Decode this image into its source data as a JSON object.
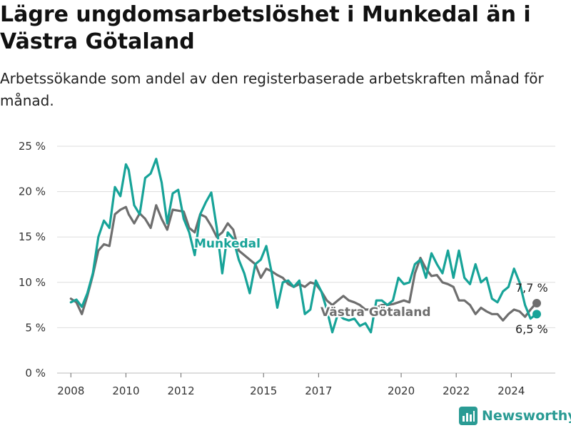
{
  "header": {
    "title": "Lägre ungdomsarbetslöshet i Munkedal än i Västra Götaland",
    "subtitle": "Arbetssökande som andel av den registerbaserade arbetskraften månad för månad."
  },
  "brand": {
    "name": "Newsworthy",
    "icon": "bar-chart-logo-icon"
  },
  "colors": {
    "munkedal": "#17a398",
    "vastra": "#6e6e6e",
    "grid": "#dddddd",
    "brand": "#2a9b94"
  },
  "chart_data": {
    "type": "line",
    "title": "Lägre ungdomsarbetslöshet i Munkedal än i Västra Götaland",
    "xlabel": "",
    "ylabel": "",
    "xlim": [
      2007.5,
      2025.6
    ],
    "ylim": [
      0,
      25
    ],
    "x_ticks": [
      2008,
      2010,
      2012,
      2015,
      2017,
      2020,
      2022,
      2024
    ],
    "x_tick_labels": [
      "2008",
      "2010",
      "2012",
      "2015",
      "2017",
      "2020",
      "2022",
      "2024"
    ],
    "y_ticks": [
      0,
      5,
      10,
      15,
      20,
      25
    ],
    "y_tick_labels": [
      "0 %",
      "5 %",
      "10 %",
      "15 %",
      "20 %",
      "25 %"
    ],
    "grid": "horizontal",
    "legend": "inline labels",
    "series": [
      {
        "name": "Munkedal",
        "color": "#17a398",
        "end_label": "6,5 %",
        "x": [
          2008.0,
          2008.2,
          2008.4,
          2008.6,
          2008.8,
          2009.0,
          2009.2,
          2009.4,
          2009.6,
          2009.8,
          2010.0,
          2010.1,
          2010.3,
          2010.5,
          2010.7,
          2010.9,
          2011.1,
          2011.3,
          2011.5,
          2011.7,
          2011.9,
          2012.1,
          2012.3,
          2012.5,
          2012.7,
          2012.9,
          2013.1,
          2013.3,
          2013.5,
          2013.7,
          2013.9,
          2014.1,
          2014.3,
          2014.5,
          2014.7,
          2014.9,
          2015.1,
          2015.3,
          2015.5,
          2015.7,
          2015.9,
          2016.1,
          2016.3,
          2016.5,
          2016.7,
          2016.9,
          2017.1,
          2017.3,
          2017.5,
          2017.7,
          2017.9,
          2018.1,
          2018.3,
          2018.5,
          2018.7,
          2018.9,
          2019.1,
          2019.3,
          2019.5,
          2019.7,
          2019.9,
          2020.1,
          2020.3,
          2020.5,
          2020.7,
          2020.9,
          2021.1,
          2021.3,
          2021.5,
          2021.7,
          2021.9,
          2022.1,
          2022.3,
          2022.5,
          2022.7,
          2022.9,
          2023.1,
          2023.3,
          2023.5,
          2023.7,
          2023.9,
          2024.1,
          2024.3,
          2024.5,
          2024.7,
          2024.9
        ],
        "values": [
          7.8,
          8.1,
          7.3,
          8.8,
          11.0,
          15.0,
          16.8,
          16.0,
          20.5,
          19.5,
          23.0,
          22.4,
          18.5,
          17.5,
          21.5,
          22.0,
          23.6,
          21.0,
          16.5,
          19.8,
          20.2,
          17.0,
          15.5,
          13.0,
          17.5,
          18.8,
          19.9,
          16.0,
          11.0,
          15.5,
          14.8,
          12.5,
          11.0,
          8.8,
          12.0,
          12.5,
          14.0,
          11.0,
          7.2,
          10.0,
          10.2,
          9.5,
          10.2,
          6.5,
          7.0,
          10.2,
          9.0,
          7.0,
          4.5,
          6.5,
          6.0,
          5.8,
          6.0,
          5.2,
          5.5,
          4.5,
          8.0,
          8.0,
          7.5,
          8.0,
          10.5,
          9.8,
          10.0,
          12.0,
          12.5,
          10.5,
          13.2,
          12.0,
          11.0,
          13.5,
          10.5,
          13.5,
          10.5,
          9.8,
          12.0,
          10.0,
          10.5,
          8.2,
          7.8,
          9.0,
          9.5,
          11.5,
          10.0,
          7.5,
          6.0,
          6.5
        ]
      },
      {
        "name": "Västra Götaland",
        "color": "#6e6e6e",
        "end_label": "7,7 %",
        "x": [
          2008.0,
          2008.2,
          2008.4,
          2008.6,
          2008.8,
          2009.0,
          2009.2,
          2009.4,
          2009.6,
          2009.8,
          2010.0,
          2010.1,
          2010.3,
          2010.5,
          2010.7,
          2010.9,
          2011.1,
          2011.3,
          2011.5,
          2011.7,
          2011.9,
          2012.1,
          2012.3,
          2012.5,
          2012.7,
          2012.9,
          2013.1,
          2013.3,
          2013.5,
          2013.7,
          2013.9,
          2014.1,
          2014.3,
          2014.5,
          2014.7,
          2014.9,
          2015.1,
          2015.3,
          2015.5,
          2015.7,
          2015.9,
          2016.1,
          2016.3,
          2016.5,
          2016.7,
          2016.9,
          2017.1,
          2017.3,
          2017.5,
          2017.7,
          2017.9,
          2018.1,
          2018.3,
          2018.5,
          2018.7,
          2018.9,
          2019.1,
          2019.3,
          2019.5,
          2019.7,
          2019.9,
          2020.1,
          2020.3,
          2020.5,
          2020.7,
          2020.9,
          2021.1,
          2021.3,
          2021.5,
          2021.7,
          2021.9,
          2022.1,
          2022.3,
          2022.5,
          2022.7,
          2022.9,
          2023.1,
          2023.3,
          2023.5,
          2023.7,
          2023.9,
          2024.1,
          2024.3,
          2024.5,
          2024.7,
          2024.9
        ],
        "values": [
          8.2,
          7.8,
          6.5,
          8.5,
          10.8,
          13.5,
          14.2,
          14.0,
          17.5,
          18.0,
          18.3,
          17.5,
          16.5,
          17.6,
          17.0,
          16.0,
          18.5,
          17.0,
          15.8,
          18.0,
          17.9,
          17.8,
          16.0,
          15.5,
          17.5,
          17.2,
          16.2,
          15.0,
          15.5,
          16.5,
          15.8,
          13.5,
          13.0,
          12.5,
          12.0,
          10.5,
          11.5,
          11.2,
          10.8,
          10.5,
          9.8,
          9.5,
          9.8,
          9.5,
          10.0,
          9.8,
          9.0,
          8.0,
          7.5,
          8.0,
          8.5,
          8.0,
          7.8,
          7.5,
          7.0,
          7.0,
          7.2,
          7.5,
          7.5,
          7.6,
          7.8,
          8.0,
          7.8,
          11.0,
          12.7,
          11.5,
          10.7,
          10.8,
          10.0,
          9.8,
          9.5,
          8.0,
          8.0,
          7.5,
          6.5,
          7.2,
          6.8,
          6.5,
          6.5,
          5.8,
          6.5,
          7.0,
          6.8,
          6.2,
          7.0,
          7.7
        ]
      }
    ]
  }
}
